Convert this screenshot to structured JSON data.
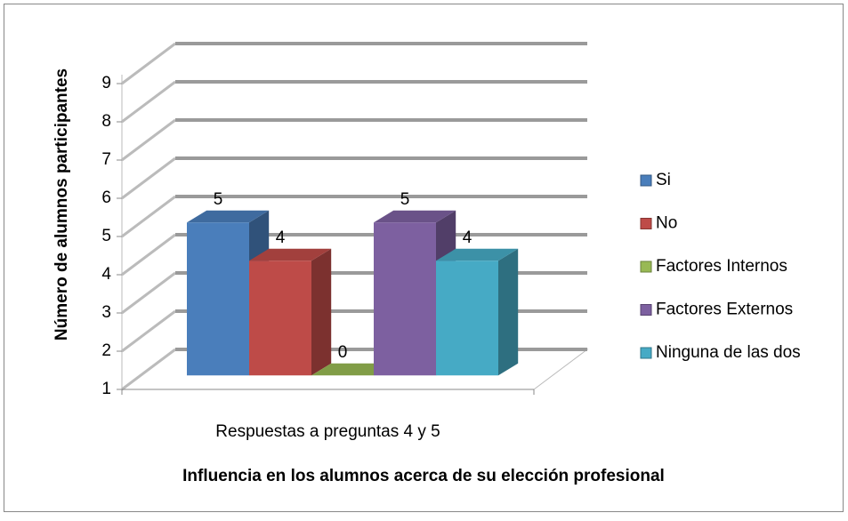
{
  "chart_data": {
    "type": "bar3d",
    "title": "Influencia en los alumnos acerca de su elección profesional",
    "y_label": "Número de alumnos participantes",
    "categories": [
      "Respuestas a preguntas 4 y 5"
    ],
    "series": [
      {
        "name": "Si",
        "color": "#4a7ebb",
        "values": [
          5
        ]
      },
      {
        "name": "No",
        "color": "#be4b48",
        "values": [
          4
        ]
      },
      {
        "name": "Factores Internos",
        "color": "#98b954",
        "values": [
          0
        ]
      },
      {
        "name": "Factores Externos",
        "color": "#7d60a0",
        "values": [
          5
        ]
      },
      {
        "name": "Ninguna de las dos",
        "color": "#46aac5",
        "values": [
          4
        ]
      }
    ],
    "ylim": [
      1,
      9
    ],
    "yticks": [
      1,
      2,
      3,
      4,
      5,
      6,
      7,
      8,
      9
    ],
    "grid": true,
    "legend": "right"
  }
}
